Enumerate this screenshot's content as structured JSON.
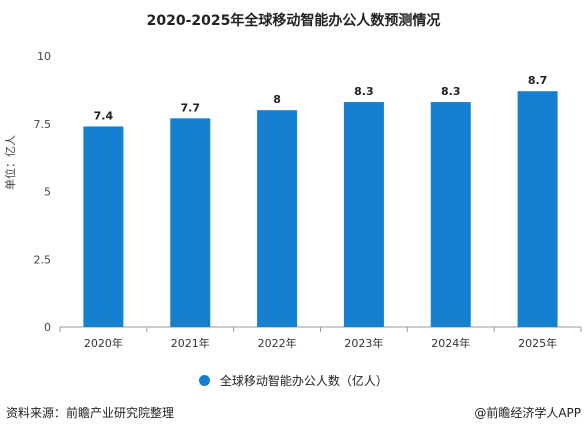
{
  "chart_data": {
    "type": "bar",
    "title": "2020-2025年全球移动智能办公人数预测情况",
    "ylabel": "单位：亿人",
    "categories": [
      "2020年",
      "2021年",
      "2022年",
      "2023年",
      "2024年",
      "2025年"
    ],
    "series": [
      {
        "name": "全球移动智能办公人数（亿人）",
        "values": [
          7.4,
          7.7,
          8,
          8.3,
          8.3,
          8.7
        ],
        "value_labels": [
          "7.4",
          "7.7",
          "8",
          "8.3",
          "8.3",
          "8.7"
        ]
      }
    ],
    "ylim": [
      0,
      10
    ],
    "yticks": [
      0,
      2.5,
      5,
      7.5,
      10
    ],
    "ytick_labels": [
      "0",
      "2.5",
      "5",
      "7.5",
      "10"
    ],
    "grid": false,
    "legend": "bottom",
    "bar_color": "#1580cf"
  },
  "footer": {
    "source": "资料来源：前瞻产业研究院整理",
    "brand": "@前瞻经济学人APP"
  }
}
